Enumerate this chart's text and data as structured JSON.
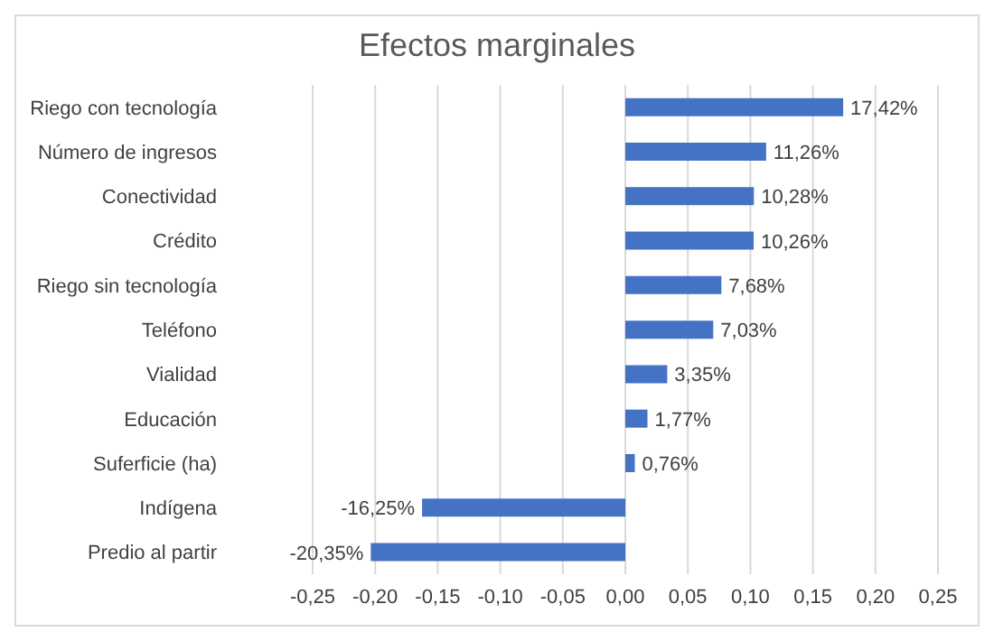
{
  "chart_data": {
    "type": "bar",
    "orientation": "horizontal",
    "title": "Efectos marginales",
    "categories": [
      "Riego con tecnología",
      "Número de ingresos",
      "Conectividad",
      "Crédito",
      "Riego sin tecnología",
      "Teléfono",
      "Vialidad",
      "Educación",
      "Suferficie (ha)",
      "Indígena",
      "Predio al partir"
    ],
    "values": [
      0.1742,
      0.1126,
      0.1028,
      0.1026,
      0.0768,
      0.0703,
      0.0335,
      0.0177,
      0.0076,
      -0.1625,
      -0.2035
    ],
    "value_labels": [
      "17,42%",
      "11,26%",
      "10,28%",
      "10,26%",
      "7,68%",
      "7,03%",
      "3,35%",
      "1,77%",
      "0,76%",
      "-16,25%",
      "-20,35%"
    ],
    "color": "#4472c4",
    "xlim": [
      -0.25,
      0.25
    ],
    "xticks": [
      {
        "value": -0.25,
        "label": "-0,25"
      },
      {
        "value": -0.2,
        "label": "-0,20"
      },
      {
        "value": -0.15,
        "label": "-0,15"
      },
      {
        "value": -0.1,
        "label": "-0,10"
      },
      {
        "value": -0.05,
        "label": "-0,05"
      },
      {
        "value": 0,
        "label": "0,00"
      },
      {
        "value": 0.05,
        "label": "0,05"
      },
      {
        "value": 0.1,
        "label": "0,10"
      },
      {
        "value": 0.15,
        "label": "0,15"
      },
      {
        "value": 0.2,
        "label": "0,20"
      },
      {
        "value": 0.25,
        "label": "0,25"
      }
    ],
    "grid": "x",
    "legend": false
  }
}
